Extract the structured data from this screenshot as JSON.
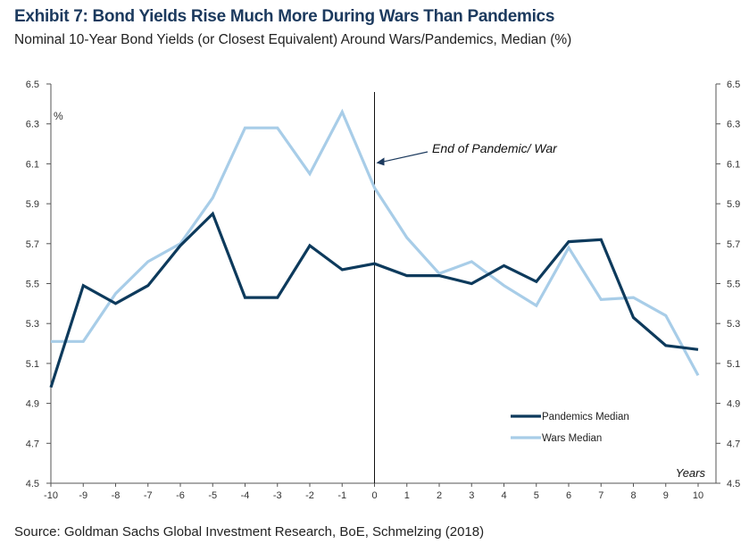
{
  "header": {
    "title": "Exhibit 7: Bond Yields Rise Much More During Wars Than Pandemics",
    "subtitle": "Nominal 10-Year Bond Yields (or Closest Equivalent) Around Wars/Pandemics, Median (%)"
  },
  "footer": {
    "source": "Source: Goldman Sachs Global Investment Research, BoE, Schmelzing (2018)"
  },
  "chart_data": {
    "type": "line",
    "title": "Exhibit 7: Bond Yields Rise Much More During Wars Than Pandemics",
    "subtitle": "Nominal 10-Year Bond Yields (or Closest Equivalent) Around Wars/Pandemics, Median (%)",
    "xlabel": "Years",
    "ylabel": "%",
    "x": [
      -10,
      -9,
      -8,
      -7,
      -6,
      -5,
      -4,
      -3,
      -2,
      -1,
      0,
      1,
      2,
      3,
      4,
      5,
      6,
      7,
      8,
      9,
      10
    ],
    "xlim": [
      -10,
      10
    ],
    "ylim": [
      4.5,
      6.5
    ],
    "yticks": [
      "4.5",
      "4.7",
      "4.9",
      "5.1",
      "5.3",
      "5.5",
      "5.7",
      "5.9",
      "6.1",
      "6.3",
      "6.5"
    ],
    "series": [
      {
        "name": "Pandemics Median",
        "color": "#0d3a5c",
        "values": [
          4.98,
          5.49,
          5.4,
          5.49,
          5.69,
          5.85,
          5.43,
          5.43,
          5.69,
          5.57,
          5.6,
          5.54,
          5.54,
          5.5,
          5.59,
          5.51,
          5.71,
          5.72,
          5.33,
          5.19,
          5.17
        ]
      },
      {
        "name": "Wars Median",
        "color": "#a8cde8",
        "values": [
          5.21,
          5.21,
          5.45,
          5.61,
          5.7,
          5.93,
          6.28,
          6.28,
          6.05,
          6.36,
          5.98,
          5.73,
          5.55,
          5.61,
          5.49,
          5.39,
          5.68,
          5.42,
          5.43,
          5.34,
          5.04
        ]
      }
    ],
    "annotations": [
      {
        "text": "End of Pandemic/ War",
        "x": 0,
        "y": 6.1
      }
    ],
    "vline_x": 0,
    "grid": false,
    "legend_position": "bottom-right",
    "dual_y_axis": true
  }
}
